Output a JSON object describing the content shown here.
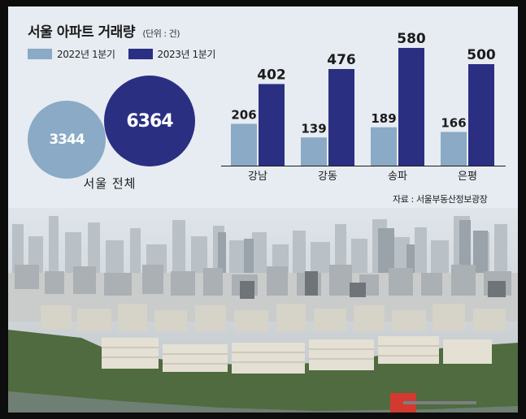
{
  "colors": {
    "series_2022": "#8aaac5",
    "series_2023": "#2b2f82",
    "background": "#e6ecf2"
  },
  "header": {
    "title": "서울 아파트 거래량",
    "unit": "(단위 : 건)"
  },
  "legend": {
    "items": [
      "2022년 1분기",
      "2023년 1분기"
    ]
  },
  "seoul_total": {
    "label": "서울 전체",
    "value_2022": "3344",
    "value_2023": "6364"
  },
  "source": "자료 : 서울부동산정보광장",
  "chart_data": {
    "type": "bar",
    "categories": [
      "강남",
      "강동",
      "송파",
      "은평"
    ],
    "series": [
      {
        "name": "2022년 1분기",
        "values": [
          206,
          139,
          189,
          166
        ]
      },
      {
        "name": "2023년 1분기",
        "values": [
          402,
          476,
          580,
          500
        ]
      }
    ],
    "ylim": [
      0,
      600
    ],
    "grid": false,
    "legend": "top-left",
    "title": "서울 아파트 거래량",
    "xlabel": "",
    "ylabel": ""
  }
}
